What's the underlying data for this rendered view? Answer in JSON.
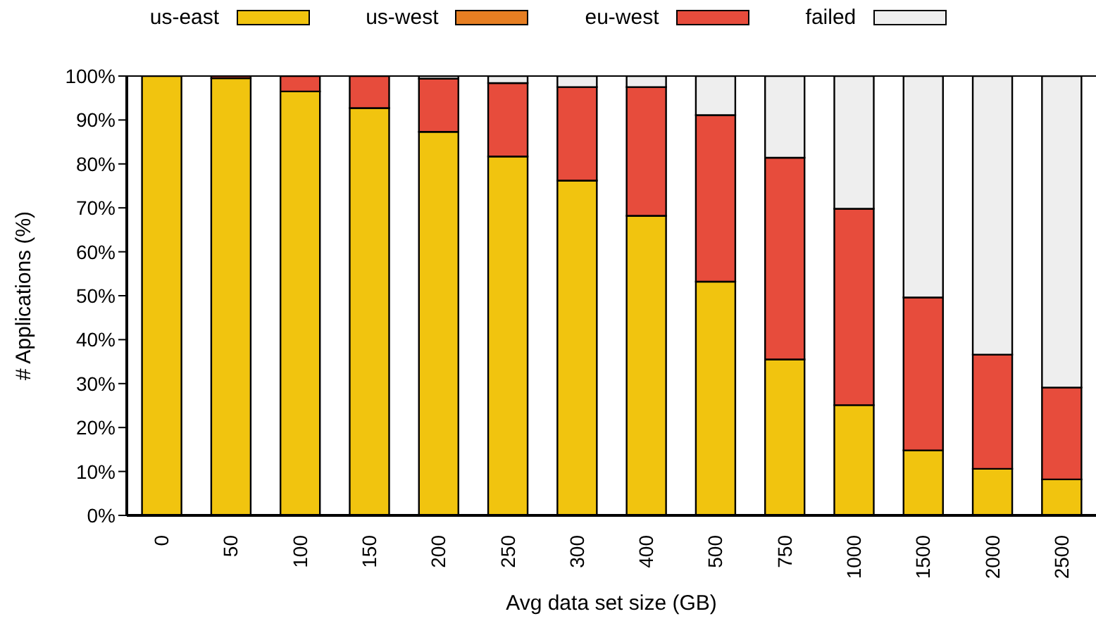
{
  "chart_data": {
    "type": "bar",
    "stacked": true,
    "xlabel": "Avg data set size (GB)",
    "ylabel": "# Applications (%)",
    "categories": [
      "0",
      "50",
      "100",
      "150",
      "200",
      "250",
      "300",
      "400",
      "500",
      "750",
      "1000",
      "1500",
      "2000",
      "2500"
    ],
    "series": [
      {
        "name": "us-east",
        "color": "#f1c40f",
        "values": [
          100,
          99.5,
          96.5,
          92.7,
          87.3,
          81.7,
          76.2,
          68.2,
          53.2,
          35.5,
          25.1,
          14.8,
          10.6,
          8.2
        ]
      },
      {
        "name": "us-west",
        "color": "#e67e22",
        "values": [
          0,
          0,
          0,
          0,
          0,
          0,
          0,
          0,
          0,
          0,
          0,
          0,
          0,
          0
        ]
      },
      {
        "name": "eu-west",
        "color": "#e74c3c",
        "values": [
          0,
          0.5,
          3.5,
          7.3,
          12.1,
          16.7,
          21.3,
          29.3,
          37.9,
          45.9,
          44.7,
          34.8,
          26.0,
          20.9
        ]
      },
      {
        "name": "failed",
        "color": "#eeeeee",
        "values": [
          0,
          0,
          0,
          0,
          0.6,
          1.6,
          2.5,
          2.5,
          8.9,
          18.6,
          30.2,
          50.4,
          63.4,
          70.9
        ]
      }
    ],
    "ylim": [
      0,
      100
    ],
    "yticks": [
      {
        "value": 0,
        "label": "0%"
      },
      {
        "value": 10,
        "label": "10%"
      },
      {
        "value": 20,
        "label": "20%"
      },
      {
        "value": 30,
        "label": "30%"
      },
      {
        "value": 40,
        "label": "40%"
      },
      {
        "value": 50,
        "label": "50%"
      },
      {
        "value": 60,
        "label": "60%"
      },
      {
        "value": 70,
        "label": "70%"
      },
      {
        "value": 80,
        "label": "80%"
      },
      {
        "value": 90,
        "label": "90%"
      },
      {
        "value": 100,
        "label": "100%"
      }
    ],
    "legend": "top",
    "grid": false
  }
}
